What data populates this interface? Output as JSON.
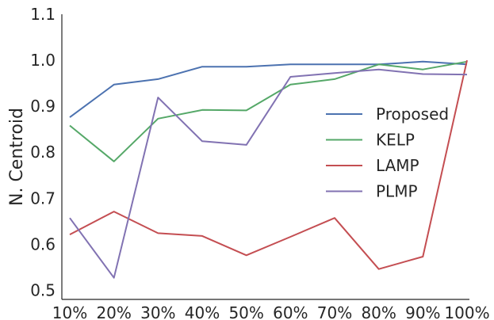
{
  "chart_data": {
    "type": "line",
    "title": "",
    "xlabel": "",
    "ylabel": "N. Centroid",
    "categories": [
      "10%",
      "20%",
      "30%",
      "40%",
      "50%",
      "60%",
      "70%",
      "80%",
      "90%",
      "100%"
    ],
    "yticks": [
      "0.5",
      "0.6",
      "0.7",
      "0.8",
      "0.9",
      "1.0",
      "1.1"
    ],
    "ylim": [
      0.48,
      1.1
    ],
    "grid": false,
    "legend_position": "center-right",
    "series": [
      {
        "name": "Proposed",
        "color": "#4c72b0",
        "values": [
          0.876,
          0.947,
          0.959,
          0.986,
          0.986,
          0.991,
          0.991,
          0.991,
          0.997,
          0.991
        ]
      },
      {
        "name": "KELP",
        "color": "#55a868",
        "values": [
          0.858,
          0.78,
          0.873,
          0.892,
          0.891,
          0.947,
          0.959,
          0.991,
          0.98,
          0.997
        ]
      },
      {
        "name": "LAMP",
        "color": "#c44e52",
        "values": [
          0.621,
          0.671,
          0.624,
          0.618,
          0.576,
          0.616,
          0.657,
          0.546,
          0.573,
          1.0
        ]
      },
      {
        "name": "PLMP",
        "color": "#8172b2",
        "values": [
          0.657,
          0.527,
          0.919,
          0.824,
          0.816,
          0.964,
          0.972,
          0.98,
          0.97,
          0.969
        ]
      }
    ]
  }
}
